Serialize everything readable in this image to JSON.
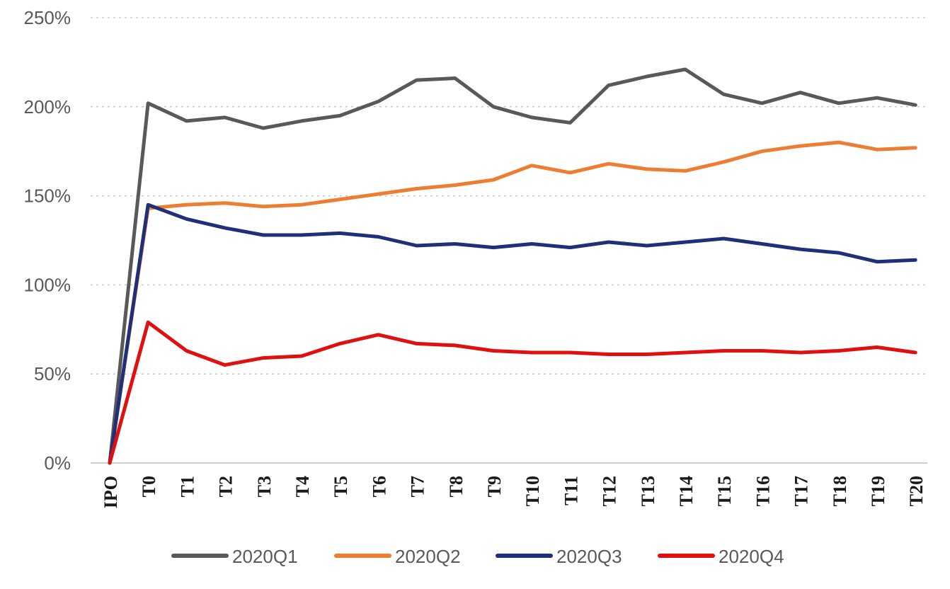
{
  "chart_data": {
    "type": "line",
    "title": "",
    "xlabel": "",
    "ylabel": "",
    "ylim": [
      0,
      250
    ],
    "y_ticks": [
      "0%",
      "50%",
      "100%",
      "150%",
      "200%",
      "250%"
    ],
    "y_tick_values": [
      0,
      50,
      100,
      150,
      200,
      250
    ],
    "categories": [
      "IPO",
      "T0",
      "T1",
      "T2",
      "T3",
      "T4",
      "T5",
      "T6",
      "T7",
      "T8",
      "T9",
      "T10",
      "T11",
      "T12",
      "T13",
      "T14",
      "T15",
      "T16",
      "T17",
      "T18",
      "T19",
      "T20"
    ],
    "grid": true,
    "legend_position": "bottom",
    "series": [
      {
        "name": "2020Q1",
        "color": "#595959",
        "values": [
          0,
          202,
          192,
          194,
          188,
          192,
          195,
          203,
          215,
          216,
          200,
          194,
          191,
          212,
          217,
          221,
          207,
          202,
          208,
          202,
          205,
          201
        ]
      },
      {
        "name": "2020Q2",
        "color": "#ed7d31",
        "values": [
          0,
          143,
          145,
          146,
          144,
          145,
          148,
          151,
          154,
          156,
          159,
          167,
          163,
          168,
          165,
          164,
          169,
          175,
          178,
          180,
          176,
          177
        ]
      },
      {
        "name": "2020Q3",
        "color": "#1f2f7a",
        "values": [
          0,
          145,
          137,
          132,
          128,
          128,
          129,
          127,
          122,
          123,
          121,
          123,
          121,
          124,
          122,
          124,
          126,
          123,
          120,
          118,
          113,
          114
        ]
      },
      {
        "name": "2020Q4",
        "color": "#e01010",
        "values": [
          0,
          79,
          63,
          55,
          59,
          60,
          67,
          72,
          67,
          66,
          63,
          62,
          62,
          61,
          61,
          62,
          63,
          63,
          62,
          63,
          65,
          62
        ]
      }
    ]
  }
}
